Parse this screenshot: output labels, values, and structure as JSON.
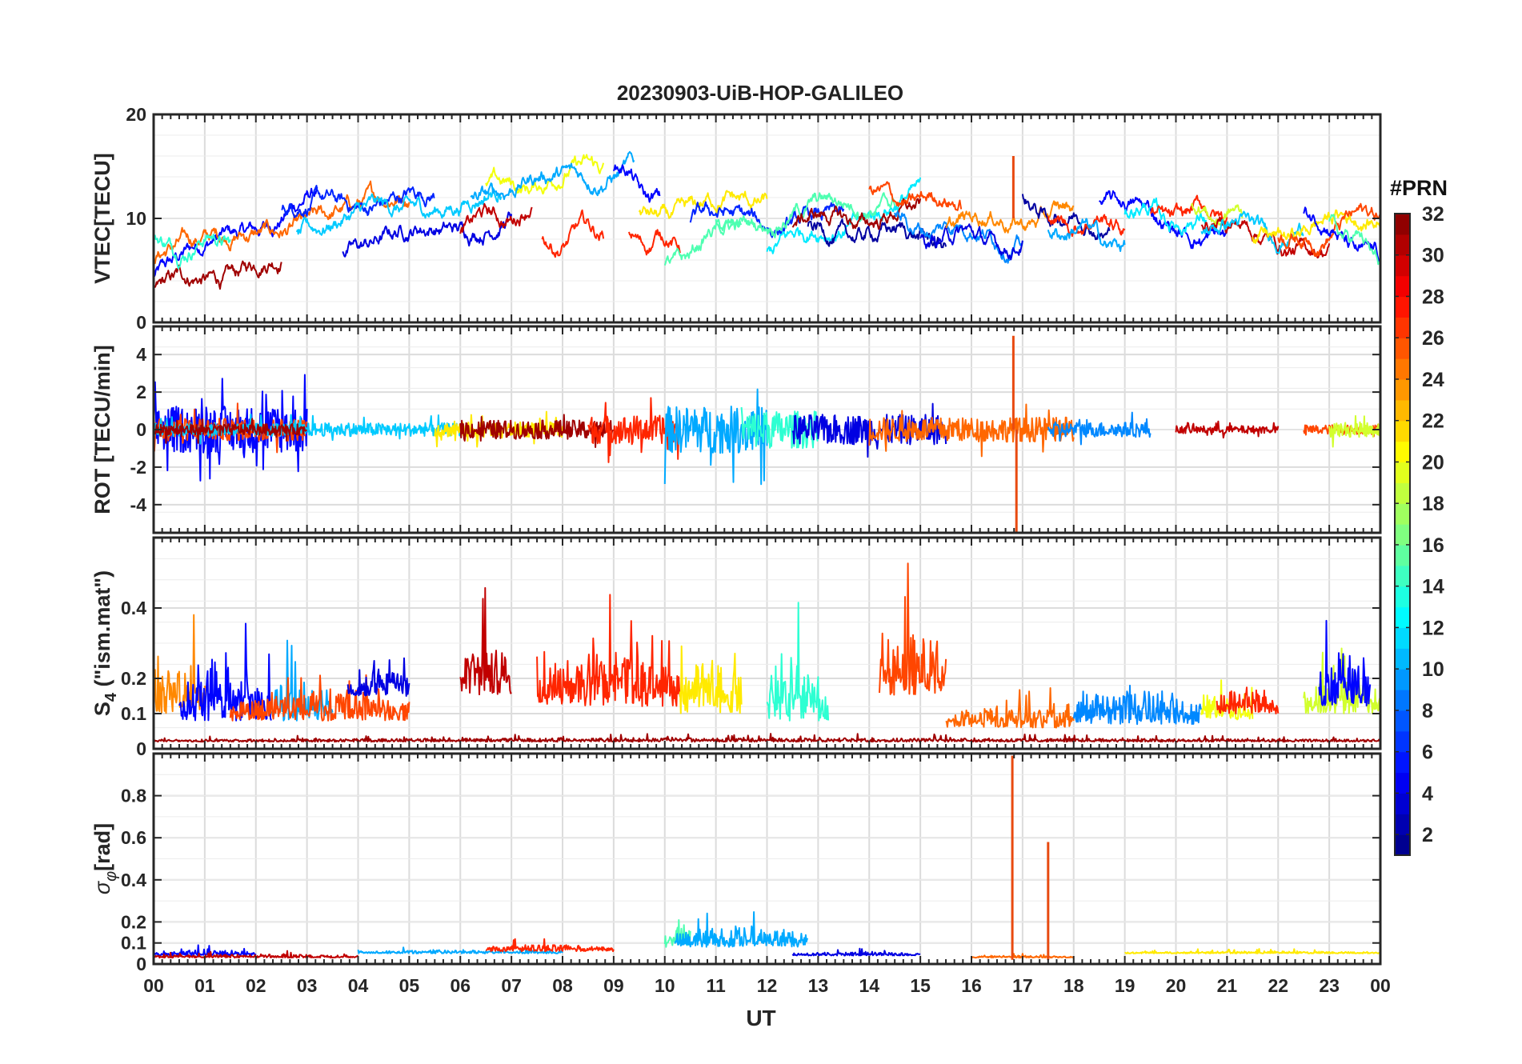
{
  "chart_data": {
    "type": "line",
    "title": "20230903-UiB-HOP-GALILEO",
    "xlabel": "UT",
    "xlim": [
      0,
      24
    ],
    "x_tick_labels": [
      "00",
      "01",
      "02",
      "03",
      "04",
      "05",
      "06",
      "07",
      "08",
      "09",
      "10",
      "11",
      "12",
      "13",
      "14",
      "15",
      "16",
      "17",
      "18",
      "19",
      "20",
      "21",
      "22",
      "23",
      "00"
    ],
    "grid": true,
    "colorbar": {
      "title": "#PRN",
      "range": [
        1,
        32
      ],
      "tick_labels": [
        "2",
        "4",
        "6",
        "8",
        "10",
        "12",
        "14",
        "16",
        "18",
        "20",
        "22",
        "24",
        "26",
        "28",
        "30",
        "32"
      ],
      "colormap": "jet"
    },
    "prns": [
      2,
      4,
      5,
      6,
      9,
      10,
      11,
      12,
      14,
      15,
      19,
      21,
      24,
      25,
      26,
      27,
      30,
      31
    ],
    "panels": [
      {
        "key": "vtec",
        "ylabel": "VTEC[TECU]",
        "ylim": [
          0,
          20
        ],
        "y_ticks": [
          0,
          10,
          20
        ],
        "y_tick_labels": [
          "0",
          "10",
          "20"
        ],
        "spikes": [
          {
            "x": 16.82,
            "value": 16.0
          }
        ],
        "segments": [
          {
            "prn": 5,
            "start": 0.0,
            "end": 3.2,
            "v0": 5.0,
            "v1": 12.0
          },
          {
            "prn": 31,
            "start": 0.0,
            "end": 2.5,
            "v0": 3.0,
            "v1": 6.0
          },
          {
            "prn": 25,
            "start": 0.0,
            "end": 5.0,
            "v0": 6.5,
            "v1": 12.0
          },
          {
            "prn": 14,
            "start": 0.0,
            "end": 1.5,
            "v0": 7.5,
            "v1": 8.0
          },
          {
            "prn": 6,
            "start": 2.5,
            "end": 5.5,
            "v0": 11.0,
            "v1": 12.0
          },
          {
            "prn": 4,
            "start": 3.7,
            "end": 7.0,
            "v0": 7.5,
            "v1": 10.0
          },
          {
            "prn": 11,
            "start": 2.8,
            "end": 6.8,
            "v0": 9.0,
            "v1": 12.5
          },
          {
            "prn": 30,
            "start": 6.0,
            "end": 7.4,
            "v0": 9.0,
            "v1": 11.0
          },
          {
            "prn": 20,
            "start": 6.5,
            "end": 8.8,
            "v0": 12.5,
            "v1": 15.0
          },
          {
            "prn": 10,
            "start": 6.2,
            "end": 9.4,
            "v0": 12.5,
            "v1": 15.0
          },
          {
            "prn": 27,
            "start": 7.6,
            "end": 8.8,
            "v0": 7.5,
            "v1": 9.0
          },
          {
            "prn": 5,
            "start": 9.0,
            "end": 9.9,
            "v0": 15.5,
            "v1": 11.0
          },
          {
            "prn": 27,
            "start": 9.3,
            "end": 10.3,
            "v0": 8.0,
            "v1": 8.0
          },
          {
            "prn": 15,
            "start": 10.0,
            "end": 11.5,
            "v0": 5.0,
            "v1": 10.0
          },
          {
            "prn": 21,
            "start": 9.5,
            "end": 12.0,
            "v0": 10.0,
            "v1": 12.0
          },
          {
            "prn": 6,
            "start": 10.5,
            "end": 13.5,
            "v0": 10.0,
            "v1": 9.5
          },
          {
            "prn": 12,
            "start": 12.0,
            "end": 15.0,
            "v0": 7.0,
            "v1": 12.0
          },
          {
            "prn": 15,
            "start": 11.0,
            "end": 14.5,
            "v0": 9.5,
            "v1": 12.0
          },
          {
            "prn": 31,
            "start": 12.5,
            "end": 15.0,
            "v0": 9.5,
            "v1": 10.5
          },
          {
            "prn": 2,
            "start": 12.8,
            "end": 15.5,
            "v0": 9.0,
            "v1": 8.0
          },
          {
            "prn": 26,
            "start": 14.0,
            "end": 15.8,
            "v0": 12.0,
            "v1": 11.5
          },
          {
            "prn": 9,
            "start": 14.5,
            "end": 17.0,
            "v0": 10.0,
            "v1": 8.0
          },
          {
            "prn": 4,
            "start": 15.0,
            "end": 17.0,
            "v0": 8.5,
            "v1": 7.5
          },
          {
            "prn": 24,
            "start": 15.5,
            "end": 18.0,
            "v0": 9.5,
            "v1": 10.5
          },
          {
            "prn": 2,
            "start": 17.0,
            "end": 18.7,
            "v0": 11.5,
            "v1": 9.0
          },
          {
            "prn": 27,
            "start": 17.5,
            "end": 19.0,
            "v0": 10.0,
            "v1": 9.5
          },
          {
            "prn": 10,
            "start": 17.5,
            "end": 19.0,
            "v0": 9.5,
            "v1": 7.5
          },
          {
            "prn": 5,
            "start": 18.5,
            "end": 21.0,
            "v0": 12.0,
            "v1": 7.5
          },
          {
            "prn": 12,
            "start": 19.0,
            "end": 20.6,
            "v0": 11.0,
            "v1": 9.5
          },
          {
            "prn": 27,
            "start": 19.5,
            "end": 21.0,
            "v0": 10.0,
            "v1": 10.5
          },
          {
            "prn": 19,
            "start": 20.3,
            "end": 21.3,
            "v0": 11.0,
            "v1": 10.0
          },
          {
            "prn": 30,
            "start": 20.5,
            "end": 23.0,
            "v0": 10.0,
            "v1": 6.5
          },
          {
            "prn": 11,
            "start": 20.5,
            "end": 22.5,
            "v0": 9.5,
            "v1": 8.5
          },
          {
            "prn": 21,
            "start": 21.5,
            "end": 24.0,
            "v0": 8.0,
            "v1": 10.5
          },
          {
            "prn": 26,
            "start": 22.0,
            "end": 24.0,
            "v0": 7.5,
            "v1": 10.5
          },
          {
            "prn": 5,
            "start": 22.5,
            "end": 24.0,
            "v0": 11.0,
            "v1": 5.5
          },
          {
            "prn": 15,
            "start": 23.0,
            "end": 24.0,
            "v0": 9.5,
            "v1": 6.0
          }
        ]
      },
      {
        "key": "rot",
        "ylabel": "ROT [TECU/min]",
        "ylim": [
          -5.5,
          5.5
        ],
        "y_ticks": [
          -4,
          -2,
          0,
          2,
          4
        ],
        "y_tick_labels": [
          "-4",
          "-2",
          "0",
          "2",
          "4"
        ],
        "spikes": [
          {
            "x": 16.82,
            "value": 5.0
          },
          {
            "x": 16.88,
            "value": -5.5
          }
        ],
        "segments": [
          {
            "prn": 5,
            "start": 0.0,
            "end": 3.0,
            "v0": 0.0,
            "v1": 0.0,
            "amp": 2.5
          },
          {
            "prn": 26,
            "start": 0.0,
            "end": 3.0,
            "v0": 0.0,
            "v1": 0.0,
            "amp": 1.2
          },
          {
            "prn": 11,
            "start": 0.0,
            "end": 6.0,
            "v0": 0.0,
            "v1": 0.0,
            "amp": 0.7
          },
          {
            "prn": 31,
            "start": 0.0,
            "end": 3.0,
            "v0": 0.0,
            "v1": 0.0,
            "amp": 0.6
          },
          {
            "prn": 21,
            "start": 5.5,
            "end": 8.0,
            "v0": 0.0,
            "v1": 0.0,
            "amp": 0.8
          },
          {
            "prn": 31,
            "start": 6.0,
            "end": 9.0,
            "v0": 0.0,
            "v1": 0.0,
            "amp": 1.0
          },
          {
            "prn": 27,
            "start": 8.5,
            "end": 10.3,
            "v0": 0.0,
            "v1": 0.0,
            "amp": 1.5
          },
          {
            "prn": 10,
            "start": 10.0,
            "end": 12.0,
            "v0": 0.0,
            "v1": 0.0,
            "amp": 2.5
          },
          {
            "prn": 14,
            "start": 11.5,
            "end": 13.0,
            "v0": 0.0,
            "v1": 0.0,
            "amp": 2.0
          },
          {
            "prn": 4,
            "start": 12.5,
            "end": 15.5,
            "v0": 0.0,
            "v1": 0.0,
            "amp": 1.6
          },
          {
            "prn": 25,
            "start": 14.0,
            "end": 18.0,
            "v0": 0.0,
            "v1": 0.0,
            "amp": 1.3
          },
          {
            "prn": 9,
            "start": 17.5,
            "end": 19.5,
            "v0": 0.0,
            "v1": 0.0,
            "amp": 0.8
          },
          {
            "prn": 30,
            "start": 20.0,
            "end": 22.0,
            "v0": 0.0,
            "v1": 0.0,
            "amp": 0.4
          },
          {
            "prn": 26,
            "start": 22.5,
            "end": 24.0,
            "v0": 0.0,
            "v1": 0.0,
            "amp": 0.5
          },
          {
            "prn": 19,
            "start": 23.0,
            "end": 24.0,
            "v0": 0.0,
            "v1": 0.0,
            "amp": 0.8
          }
        ]
      },
      {
        "key": "s4",
        "ylabel": "S4 (\"ism.mat\")",
        "ylim": [
          0,
          0.6
        ],
        "y_ticks": [
          0,
          0.1,
          0.2,
          0.4
        ],
        "y_tick_labels": [
          "0",
          "0.1",
          "0.2",
          "0.4"
        ],
        "spikes": [],
        "segments": [
          {
            "prn": 24,
            "start": 0.0,
            "end": 1.0,
            "v0": 0.1,
            "v1": 0.1,
            "amp": 0.3
          },
          {
            "prn": 5,
            "start": 0.5,
            "end": 2.3,
            "v0": 0.08,
            "v1": 0.08,
            "amp": 0.3
          },
          {
            "prn": 10,
            "start": 2.3,
            "end": 3.5,
            "v0": 0.08,
            "v1": 0.08,
            "amp": 0.25
          },
          {
            "prn": 26,
            "start": 1.5,
            "end": 5.0,
            "v0": 0.08,
            "v1": 0.08,
            "amp": 0.15
          },
          {
            "prn": 4,
            "start": 3.8,
            "end": 5.0,
            "v0": 0.15,
            "v1": 0.15,
            "amp": 0.15
          },
          {
            "prn": 30,
            "start": 6.0,
            "end": 7.0,
            "v0": 0.15,
            "v1": 0.15,
            "amp": 0.3
          },
          {
            "prn": 27,
            "start": 7.5,
            "end": 10.3,
            "v0": 0.12,
            "v1": 0.12,
            "amp": 0.3
          },
          {
            "prn": 21,
            "start": 10.3,
            "end": 11.5,
            "v0": 0.1,
            "v1": 0.1,
            "amp": 0.3
          },
          {
            "prn": 14,
            "start": 12.0,
            "end": 13.2,
            "v0": 0.08,
            "v1": 0.08,
            "amp": 0.3
          },
          {
            "prn": 26,
            "start": 14.2,
            "end": 15.5,
            "v0": 0.15,
            "v1": 0.15,
            "amp": 0.35
          },
          {
            "prn": 25,
            "start": 15.5,
            "end": 18.0,
            "v0": 0.06,
            "v1": 0.06,
            "amp": 0.12
          },
          {
            "prn": 9,
            "start": 18.0,
            "end": 20.5,
            "v0": 0.07,
            "v1": 0.07,
            "amp": 0.2
          },
          {
            "prn": 20,
            "start": 20.5,
            "end": 21.5,
            "v0": 0.08,
            "v1": 0.08,
            "amp": 0.15
          },
          {
            "prn": 27,
            "start": 20.8,
            "end": 22.0,
            "v0": 0.1,
            "v1": 0.1,
            "amp": 0.15
          },
          {
            "prn": 19,
            "start": 22.5,
            "end": 24.0,
            "v0": 0.1,
            "v1": 0.1,
            "amp": 0.2
          },
          {
            "prn": 5,
            "start": 22.8,
            "end": 23.8,
            "v0": 0.12,
            "v1": 0.12,
            "amp": 0.3
          },
          {
            "prn": 31,
            "start": 0.0,
            "end": 24.0,
            "v0": 0.02,
            "v1": 0.02,
            "amp": 0.02
          }
        ]
      },
      {
        "key": "sigma_phi",
        "ylabel": "σφ[rad]",
        "ylim": [
          0,
          1.0
        ],
        "y_ticks": [
          0,
          0.1,
          0.2,
          0.4,
          0.6,
          0.8
        ],
        "y_tick_labels": [
          "0",
          "0.1",
          "0.2",
          "0.4",
          "0.6",
          "0.8"
        ],
        "spikes": [
          {
            "x": 16.8,
            "value": 0.99
          },
          {
            "x": 17.5,
            "value": 0.58
          }
        ],
        "segments": [
          {
            "prn": 5,
            "start": 0.0,
            "end": 2.0,
            "v0": 0.04,
            "v1": 0.04,
            "amp": 0.05
          },
          {
            "prn": 30,
            "start": 0.0,
            "end": 4.0,
            "v0": 0.03,
            "v1": 0.03,
            "amp": 0.03
          },
          {
            "prn": 10,
            "start": 4.0,
            "end": 8.0,
            "v0": 0.05,
            "v1": 0.05,
            "amp": 0.03
          },
          {
            "prn": 27,
            "start": 6.5,
            "end": 9.0,
            "v0": 0.06,
            "v1": 0.06,
            "amp": 0.06
          },
          {
            "prn": 15,
            "start": 10.0,
            "end": 10.5,
            "v0": 0.08,
            "v1": 0.08,
            "amp": 0.25
          },
          {
            "prn": 10,
            "start": 10.2,
            "end": 12.8,
            "v0": 0.08,
            "v1": 0.08,
            "amp": 0.2
          },
          {
            "prn": 4,
            "start": 12.5,
            "end": 15.0,
            "v0": 0.04,
            "v1": 0.04,
            "amp": 0.03
          },
          {
            "prn": 21,
            "start": 19.0,
            "end": 24.0,
            "v0": 0.05,
            "v1": 0.05,
            "amp": 0.02
          },
          {
            "prn": 25,
            "start": 16.0,
            "end": 18.0,
            "v0": 0.03,
            "v1": 0.03,
            "amp": 0.02
          }
        ]
      }
    ]
  }
}
